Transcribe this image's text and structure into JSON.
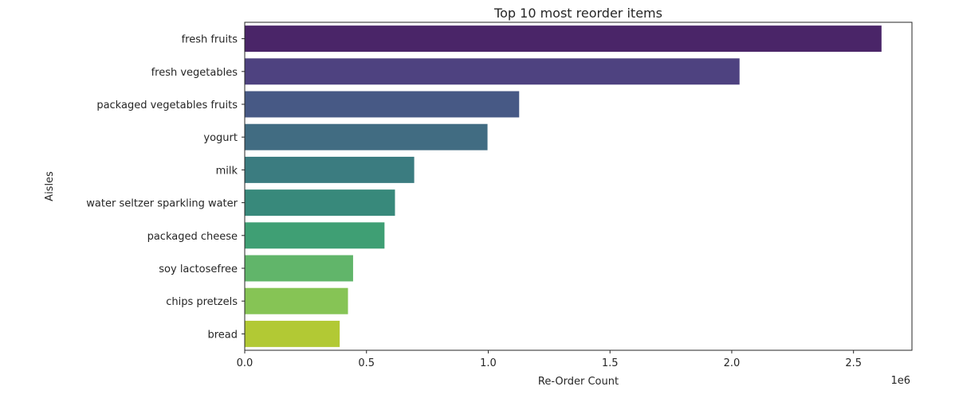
{
  "chart_data": {
    "type": "bar",
    "orientation": "horizontal",
    "title": "Top 10 most reorder items",
    "xlabel": "Re-Order Count",
    "ylabel": "Aisles",
    "x_offset_label": "1e6",
    "xlim": [
      0,
      2.74
    ],
    "xticks": [
      0.0,
      0.5,
      1.0,
      1.5,
      2.0,
      2.5
    ],
    "xtick_labels": [
      "0.0",
      "0.5",
      "1.0",
      "1.5",
      "2.0",
      "2.5"
    ],
    "grid": false,
    "palette": "viridis",
    "categories": [
      "fresh fruits",
      "fresh vegetables",
      "packaged vegetables fruits",
      "yogurt",
      "milk",
      "water seltzer sparkling water",
      "packaged cheese",
      "soy lactosefree",
      "chips pretzels",
      "bread"
    ],
    "values": [
      2.615,
      2.032,
      1.127,
      0.997,
      0.696,
      0.617,
      0.574,
      0.445,
      0.424,
      0.39
    ],
    "colors": [
      "#4a2568",
      "#4e4280",
      "#475985",
      "#416c82",
      "#3b7c80",
      "#38897b",
      "#3f9f74",
      "#61b56a",
      "#86c455",
      "#b2c934"
    ]
  }
}
